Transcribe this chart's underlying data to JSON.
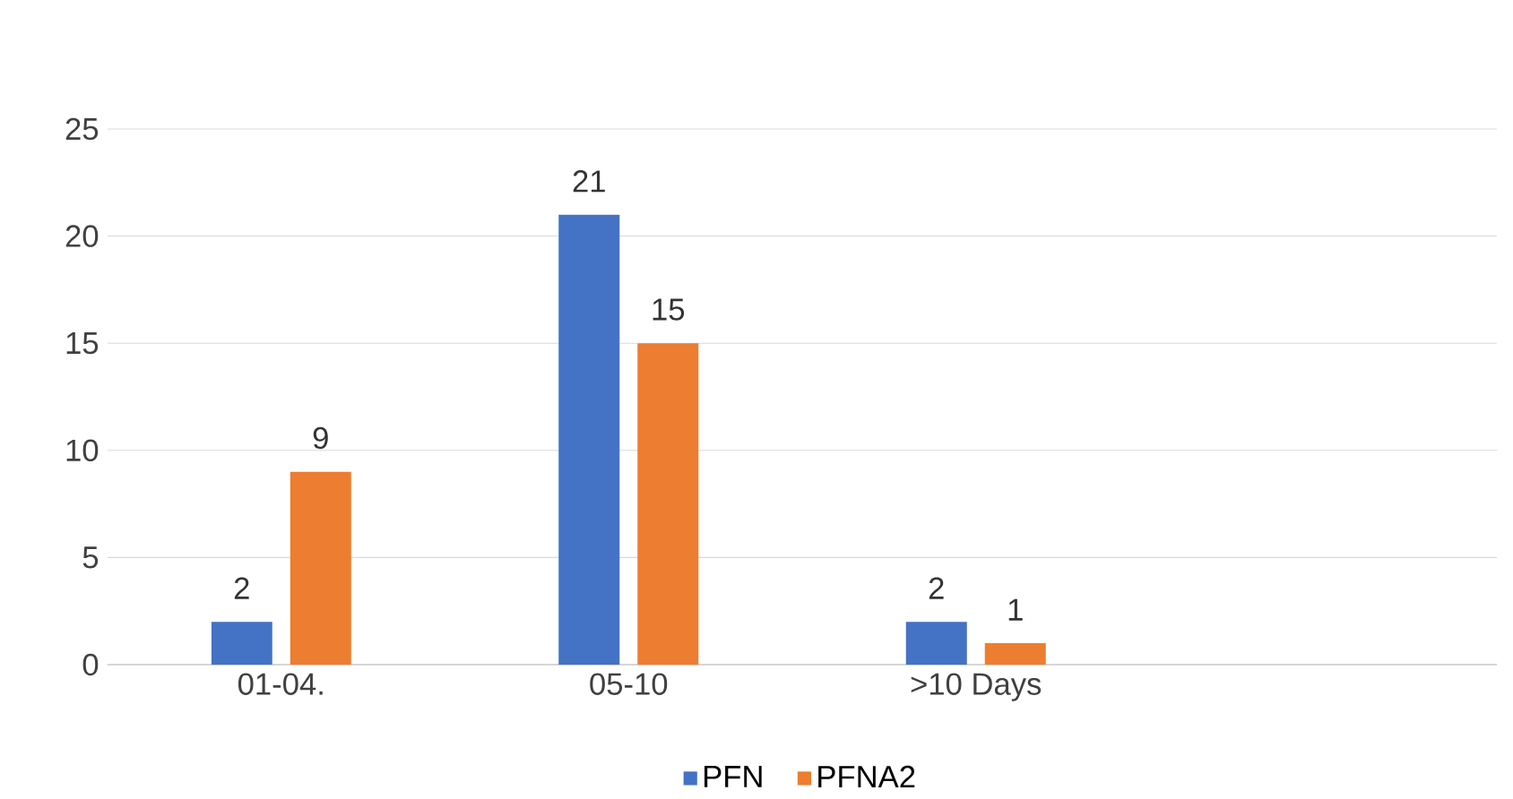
{
  "chart_data": {
    "type": "bar",
    "categories": [
      "01-04.",
      "05-10",
      ">10 Days",
      null
    ],
    "series": [
      {
        "name": "PFN",
        "color": "#4472c4",
        "values": [
          2,
          21,
          2,
          null
        ]
      },
      {
        "name": "PFNA2",
        "color": "#ed7d31",
        "values": [
          9,
          15,
          1,
          null
        ]
      }
    ],
    "ylim": [
      0,
      25
    ],
    "yticks": [
      0,
      5,
      10,
      15,
      20,
      25
    ],
    "grid": "y",
    "legend": "bottom",
    "data_labels": true
  }
}
